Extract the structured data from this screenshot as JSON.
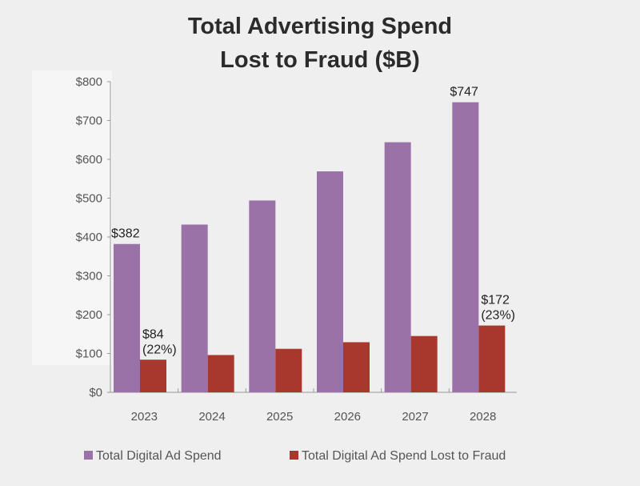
{
  "chart_data": {
    "type": "bar",
    "title": "Total Advertising Spend Lost to Fraud ($B)",
    "title_lines": [
      "Total Advertising Spend",
      "Lost to Fraud ($B)"
    ],
    "categories": [
      "2023",
      "2024",
      "2025",
      "2026",
      "2027",
      "2028"
    ],
    "series": [
      {
        "name": "Total Digital Ad Spend",
        "color": "#9b72a8",
        "values": [
          382,
          432,
          494,
          569,
          644,
          747
        ]
      },
      {
        "name": "Total Digital Ad Spend Lost to Fraud",
        "color": "#a8372d",
        "values": [
          84,
          96,
          112,
          129,
          145,
          172
        ]
      }
    ],
    "data_labels": [
      {
        "series": 0,
        "index": 0,
        "lines": [
          "$382"
        ]
      },
      {
        "series": 0,
        "index": 5,
        "lines": [
          "$747"
        ]
      },
      {
        "series": 1,
        "index": 0,
        "lines": [
          "$84",
          "(22%)"
        ]
      },
      {
        "series": 1,
        "index": 5,
        "lines": [
          "$172",
          "(23%)"
        ]
      }
    ],
    "yticks": [
      "$0",
      "$100",
      "$200",
      "$300",
      "$400",
      "$500",
      "$600",
      "$700",
      "$800"
    ],
    "ylim": [
      0,
      800
    ],
    "xlabel": "",
    "ylabel": "",
    "grid": false,
    "legend": "bottom"
  }
}
